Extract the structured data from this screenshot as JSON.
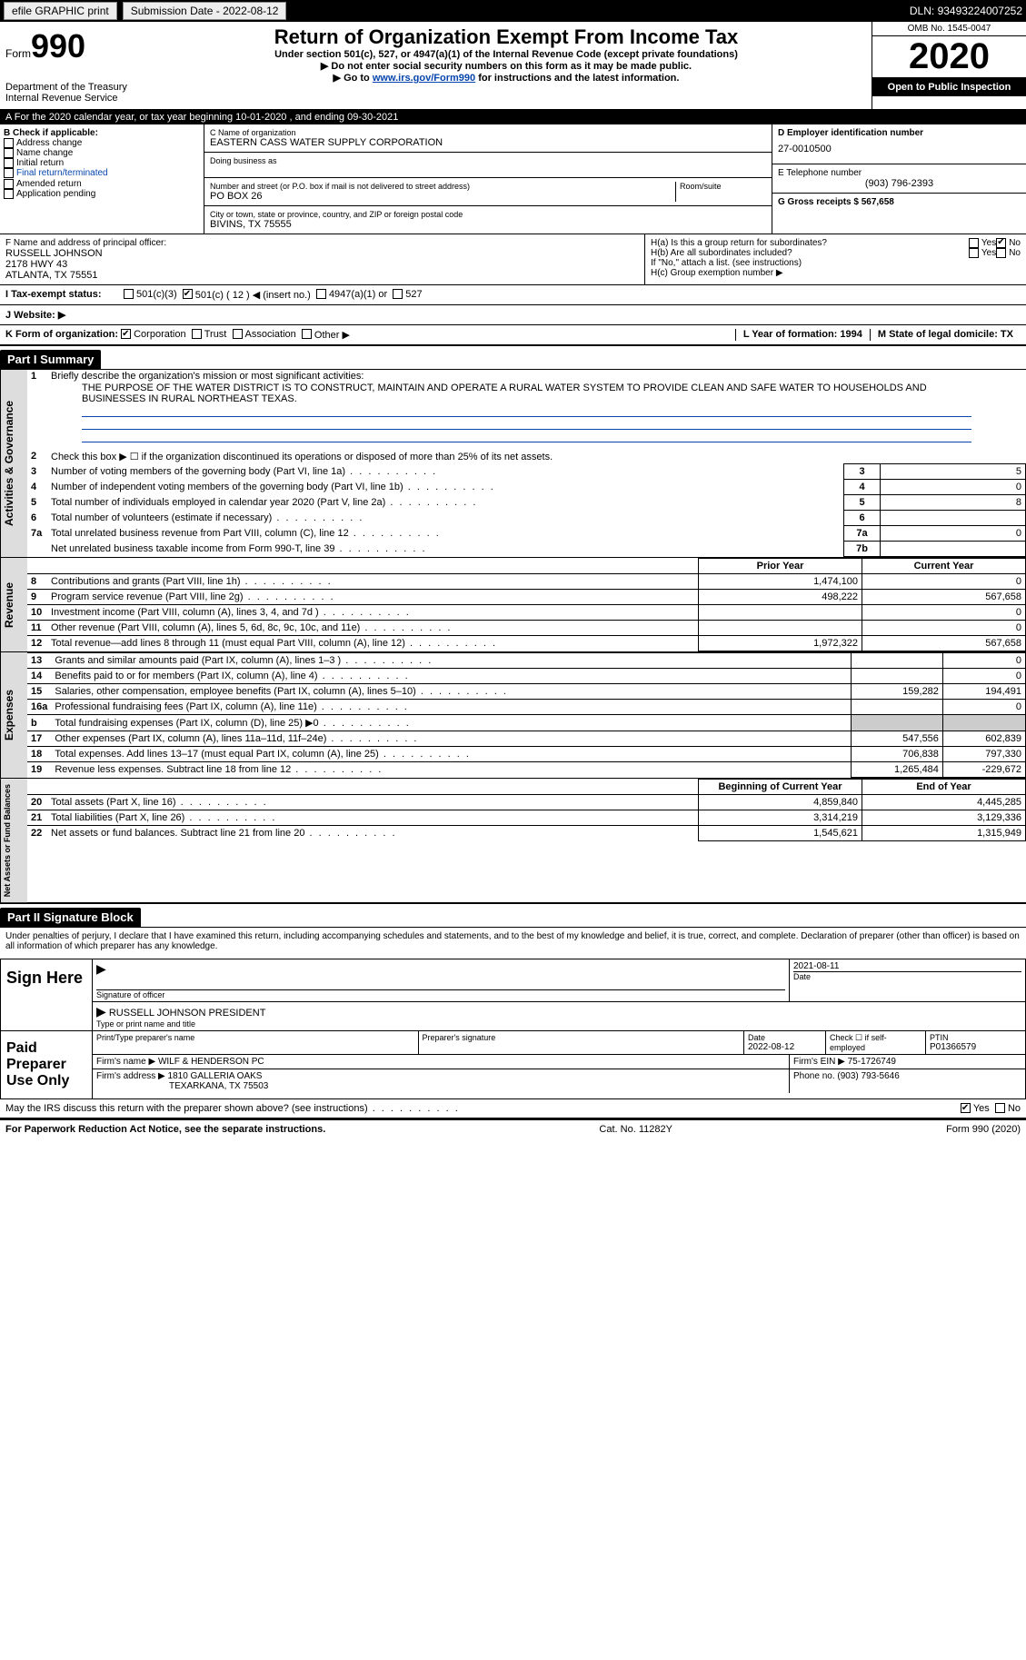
{
  "topbar": {
    "efile_label": "efile GRAPHIC print",
    "submission_label": "Submission Date - 2022-08-12",
    "dln_label": "DLN: 93493224007252"
  },
  "header": {
    "form_prefix": "Form",
    "form_number": "990",
    "dept": "Department of the Treasury",
    "irs": "Internal Revenue Service",
    "title": "Return of Organization Exempt From Income Tax",
    "sub1": "Under section 501(c), 527, or 4947(a)(1) of the Internal Revenue Code (except private foundations)",
    "sub2": "▶ Do not enter social security numbers on this form as it may be made public.",
    "sub3_pre": "▶ Go to ",
    "sub3_link": "www.irs.gov/Form990",
    "sub3_post": " for instructions and the latest information.",
    "omb": "OMB No. 1545-0047",
    "year": "2020",
    "open": "Open to Public Inspection"
  },
  "period": {
    "text": "A For the 2020 calendar year, or tax year beginning 10-01-2020   , and ending 09-30-2021"
  },
  "boxB": {
    "header": "B Check if applicable:",
    "items": [
      "Address change",
      "Name change",
      "Initial return",
      "Final return/terminated",
      "Amended return",
      "Application pending"
    ]
  },
  "boxC": {
    "name_label": "C Name of organization",
    "name": "EASTERN CASS WATER SUPPLY CORPORATION",
    "dba_label": "Doing business as",
    "street_label": "Number and street (or P.O. box if mail is not delivered to street address)",
    "room_label": "Room/suite",
    "street": "PO BOX 26",
    "city_label": "City or town, state or province, country, and ZIP or foreign postal code",
    "city": "BIVINS, TX  75555"
  },
  "boxD": {
    "label": "D Employer identification number",
    "value": "27-0010500"
  },
  "boxE": {
    "label": "E Telephone number",
    "value": "(903) 796-2393"
  },
  "boxG": {
    "label": "G Gross receipts $ 567,658"
  },
  "boxF": {
    "label": "F  Name and address of principal officer:",
    "name": "RUSSELL JOHNSON",
    "addr1": "2178 HWY 43",
    "addr2": "ATLANTA, TX  75551"
  },
  "boxH": {
    "a": "H(a)  Is this a group return for subordinates?",
    "b": "H(b)  Are all subordinates included?",
    "note": "If \"No,\" attach a list. (see instructions)",
    "c": "H(c)  Group exemption number ▶",
    "yes": "Yes",
    "no": "No"
  },
  "boxI": {
    "label": "I   Tax-exempt status:",
    "o1": "501(c)(3)",
    "o2": "501(c) ( 12 ) ◀ (insert no.)",
    "o3": "4947(a)(1) or",
    "o4": "527"
  },
  "boxJ": {
    "label": "J   Website: ▶"
  },
  "boxK": {
    "label": "K Form of organization:",
    "o1": "Corporation",
    "o2": "Trust",
    "o3": "Association",
    "o4": "Other ▶"
  },
  "boxL": {
    "label": "L Year of formation: 1994"
  },
  "boxM": {
    "label": "M State of legal domicile: TX"
  },
  "partI": {
    "title": "Part I      Summary",
    "q1": "Briefly describe the organization's mission or most significant activities:",
    "mission": "THE PURPOSE OF THE WATER DISTRICT IS TO CONSTRUCT, MAINTAIN AND OPERATE A RURAL WATER SYSTEM TO PROVIDE CLEAN AND SAFE WATER TO HOUSEHOLDS AND BUSINESSES IN RURAL NORTHEAST TEXAS.",
    "q2": "Check this box ▶ ☐  if the organization discontinued its operations or disposed of more than 25% of its net assets.",
    "governance_label": "Activities & Governance",
    "revenue_label": "Revenue",
    "expenses_label": "Expenses",
    "netassets_label": "Net Assets or Fund Balances",
    "lines_gov": [
      {
        "n": "3",
        "t": "Number of voting members of the governing body (Part VI, line 1a)",
        "box": "3",
        "v": "5"
      },
      {
        "n": "4",
        "t": "Number of independent voting members of the governing body (Part VI, line 1b)",
        "box": "4",
        "v": "0"
      },
      {
        "n": "5",
        "t": "Total number of individuals employed in calendar year 2020 (Part V, line 2a)",
        "box": "5",
        "v": "8"
      },
      {
        "n": "6",
        "t": "Total number of volunteers (estimate if necessary)",
        "box": "6",
        "v": ""
      },
      {
        "n": "7a",
        "t": "Total unrelated business revenue from Part VIII, column (C), line 12",
        "box": "7a",
        "v": "0"
      },
      {
        "n": "",
        "t": "Net unrelated business taxable income from Form 990-T, line 39",
        "box": "7b",
        "v": ""
      }
    ],
    "col_prior": "Prior Year",
    "col_current": "Current Year",
    "col_begin": "Beginning of Current Year",
    "col_end": "End of Year",
    "lines_rev": [
      {
        "n": "8",
        "t": "Contributions and grants (Part VIII, line 1h)",
        "p": "1,474,100",
        "c": "0"
      },
      {
        "n": "9",
        "t": "Program service revenue (Part VIII, line 2g)",
        "p": "498,222",
        "c": "567,658"
      },
      {
        "n": "10",
        "t": "Investment income (Part VIII, column (A), lines 3, 4, and 7d )",
        "p": "",
        "c": "0"
      },
      {
        "n": "11",
        "t": "Other revenue (Part VIII, column (A), lines 5, 6d, 8c, 9c, 10c, and 11e)",
        "p": "",
        "c": "0"
      },
      {
        "n": "12",
        "t": "Total revenue—add lines 8 through 11 (must equal Part VIII, column (A), line 12)",
        "p": "1,972,322",
        "c": "567,658"
      }
    ],
    "lines_exp": [
      {
        "n": "13",
        "t": "Grants and similar amounts paid (Part IX, column (A), lines 1–3 )",
        "p": "",
        "c": "0"
      },
      {
        "n": "14",
        "t": "Benefits paid to or for members (Part IX, column (A), line 4)",
        "p": "",
        "c": "0"
      },
      {
        "n": "15",
        "t": "Salaries, other compensation, employee benefits (Part IX, column (A), lines 5–10)",
        "p": "159,282",
        "c": "194,491"
      },
      {
        "n": "16a",
        "t": "Professional fundraising fees (Part IX, column (A), line 11e)",
        "p": "",
        "c": "0"
      },
      {
        "n": "b",
        "t": "Total fundraising expenses (Part IX, column (D), line 25) ▶0",
        "p": "shade",
        "c": "shade"
      },
      {
        "n": "17",
        "t": "Other expenses (Part IX, column (A), lines 11a–11d, 11f–24e)",
        "p": "547,556",
        "c": "602,839"
      },
      {
        "n": "18",
        "t": "Total expenses. Add lines 13–17 (must equal Part IX, column (A), line 25)",
        "p": "706,838",
        "c": "797,330"
      },
      {
        "n": "19",
        "t": "Revenue less expenses. Subtract line 18 from line 12",
        "p": "1,265,484",
        "c": "-229,672"
      }
    ],
    "lines_net": [
      {
        "n": "20",
        "t": "Total assets (Part X, line 16)",
        "p": "4,859,840",
        "c": "4,445,285"
      },
      {
        "n": "21",
        "t": "Total liabilities (Part X, line 26)",
        "p": "3,314,219",
        "c": "3,129,336"
      },
      {
        "n": "22",
        "t": "Net assets or fund balances. Subtract line 21 from line 20",
        "p": "1,545,621",
        "c": "1,315,949"
      }
    ]
  },
  "partII": {
    "title": "Part II     Signature Block",
    "declaration": "Under penalties of perjury, I declare that I have examined this return, including accompanying schedules and statements, and to the best of my knowledge and belief, it is true, correct, and complete. Declaration of preparer (other than officer) is based on all information of which preparer has any knowledge.",
    "sign_here": "Sign Here",
    "sig_officer": "Signature of officer",
    "sig_date": "2021-08-11",
    "date_label": "Date",
    "officer_name": "RUSSELL JOHNSON  PRESIDENT",
    "type_label": "Type or print name and title",
    "paid_label": "Paid Preparer Use Only",
    "pp_name_label": "Print/Type preparer's name",
    "pp_sig_label": "Preparer's signature",
    "pp_date_label": "Date",
    "pp_date": "2022-08-12",
    "pp_self": "Check ☐ if self-employed",
    "ptin_label": "PTIN",
    "ptin": "P01366579",
    "firm_name_label": "Firm's name   ▶",
    "firm_name": "WILF & HENDERSON PC",
    "firm_ein_label": "Firm's EIN ▶",
    "firm_ein": "75-1726749",
    "firm_addr_label": "Firm's address ▶",
    "firm_addr1": "1810 GALLERIA OAKS",
    "firm_addr2": "TEXARKANA, TX  75503",
    "phone_label": "Phone no.",
    "phone": "(903) 793-5646",
    "discuss": "May the IRS discuss this return with the preparer shown above? (see instructions)",
    "yes": "Yes",
    "no": "No"
  },
  "footer": {
    "left": "For Paperwork Reduction Act Notice, see the separate instructions.",
    "mid": "Cat. No. 11282Y",
    "right": "Form 990 (2020)"
  }
}
